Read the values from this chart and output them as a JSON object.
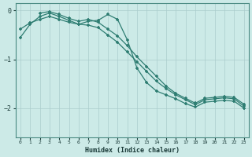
{
  "xlabel": "Humidex (Indice chaleur)",
  "bg_color": "#cceae7",
  "grid_color": "#aacccc",
  "line_color": "#2e7d72",
  "xlim": [
    -0.5,
    23.5
  ],
  "ylim": [
    -2.6,
    0.15
  ],
  "yticks": [
    0,
    -1,
    -2
  ],
  "xticks": [
    0,
    1,
    2,
    3,
    4,
    5,
    6,
    7,
    8,
    9,
    10,
    11,
    12,
    13,
    14,
    15,
    16,
    17,
    18,
    19,
    20,
    21,
    22,
    23
  ],
  "series1_x": [
    0,
    1,
    2,
    3,
    4,
    5,
    6,
    7,
    8,
    9,
    10,
    11,
    12,
    13,
    14,
    15,
    16,
    17,
    18,
    19,
    20,
    21,
    22,
    23
  ],
  "series1_y": [
    -0.38,
    -0.25,
    -0.18,
    -0.12,
    -0.18,
    -0.24,
    -0.28,
    -0.3,
    -0.35,
    -0.5,
    -0.65,
    -0.85,
    -1.05,
    -1.25,
    -1.45,
    -1.6,
    -1.73,
    -1.83,
    -1.93,
    -1.83,
    -1.81,
    -1.79,
    -1.81,
    -1.96
  ],
  "series2_x": [
    0,
    1,
    2,
    3,
    4,
    5,
    6,
    7,
    8,
    9,
    10,
    11,
    12,
    13,
    14,
    15,
    16,
    17,
    18,
    19,
    20,
    21,
    22,
    23
  ],
  "series2_y": [
    -0.55,
    -0.28,
    -0.12,
    -0.05,
    -0.12,
    -0.2,
    -0.28,
    -0.22,
    -0.2,
    -0.08,
    -0.18,
    -0.6,
    -1.18,
    -1.48,
    -1.65,
    -1.73,
    -1.81,
    -1.91,
    -1.98,
    -1.88,
    -1.86,
    -1.84,
    -1.86,
    -2.0
  ],
  "series3_x": [
    2,
    3,
    4,
    5,
    6,
    7,
    8,
    9,
    10,
    11,
    12,
    13,
    14,
    15,
    16,
    17,
    18,
    19,
    20,
    21,
    22,
    23
  ],
  "series3_y": [
    -0.05,
    -0.02,
    -0.08,
    -0.16,
    -0.22,
    -0.18,
    -0.24,
    -0.38,
    -0.52,
    -0.72,
    -0.95,
    -1.15,
    -1.35,
    -1.55,
    -1.7,
    -1.8,
    -1.9,
    -1.8,
    -1.78,
    -1.76,
    -1.78,
    -1.92
  ]
}
